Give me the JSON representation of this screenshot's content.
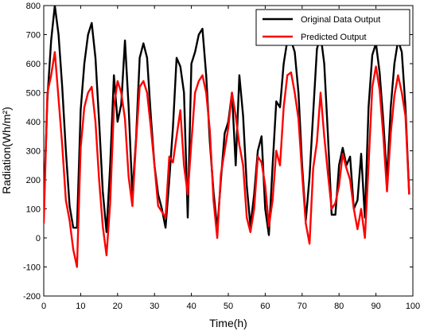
{
  "chart_data": {
    "type": "line",
    "xlabel": "Time(h)",
    "ylabel": "Radiation(Wh/m²)",
    "xlim": [
      0,
      100
    ],
    "ylim": [
      -200,
      800
    ],
    "xticks": [
      0,
      10,
      20,
      30,
      40,
      50,
      60,
      70,
      80,
      90,
      100
    ],
    "yticks": [
      -200,
      -100,
      0,
      100,
      200,
      300,
      400,
      500,
      600,
      700,
      800
    ],
    "grid": false,
    "legend_position": "top-right",
    "series": [
      {
        "name": "Original Data Output",
        "color": "#000000",
        "x": [
          0,
          1,
          2,
          3,
          4,
          5,
          6,
          7,
          8,
          9,
          10,
          11,
          12,
          13,
          14,
          15,
          16,
          17,
          18,
          19,
          20,
          21,
          22,
          23,
          24,
          25,
          26,
          27,
          28,
          29,
          30,
          31,
          32,
          33,
          34,
          35,
          36,
          37,
          38,
          39,
          40,
          41,
          42,
          43,
          44,
          45,
          46,
          47,
          48,
          49,
          50,
          51,
          52,
          53,
          54,
          55,
          56,
          57,
          58,
          59,
          60,
          61,
          62,
          63,
          64,
          65,
          66,
          67,
          68,
          69,
          70,
          71,
          72,
          73,
          74,
          75,
          76,
          77,
          78,
          79,
          80,
          81,
          82,
          83,
          84,
          85,
          86,
          87,
          88,
          89,
          90,
          91,
          92,
          93,
          94,
          95,
          96,
          97,
          98,
          99
        ],
        "y": [
          100,
          480,
          680,
          800,
          700,
          520,
          300,
          110,
          35,
          35,
          440,
          600,
          700,
          740,
          620,
          400,
          160,
          20,
          250,
          560,
          400,
          460,
          680,
          450,
          150,
          340,
          620,
          670,
          620,
          420,
          250,
          150,
          100,
          35,
          200,
          380,
          620,
          590,
          500,
          70,
          600,
          640,
          700,
          720,
          560,
          330,
          160,
          30,
          200,
          360,
          400,
          500,
          250,
          560,
          420,
          180,
          40,
          150,
          300,
          350,
          100,
          10,
          250,
          470,
          450,
          600,
          680,
          680,
          640,
          500,
          250,
          60,
          210,
          430,
          650,
          700,
          600,
          350,
          80,
          80,
          250,
          310,
          250,
          280,
          100,
          130,
          290,
          70,
          450,
          630,
          670,
          570,
          400,
          200,
          450,
          600,
          680,
          640,
          450,
          150
        ]
      },
      {
        "name": "Predicted Output",
        "color": "#ff0000",
        "x": [
          0,
          1,
          2,
          3,
          4,
          5,
          6,
          7,
          8,
          9,
          10,
          11,
          12,
          13,
          14,
          15,
          16,
          17,
          18,
          19,
          20,
          21,
          22,
          23,
          24,
          25,
          26,
          27,
          28,
          29,
          30,
          31,
          32,
          33,
          34,
          35,
          36,
          37,
          38,
          39,
          40,
          41,
          42,
          43,
          44,
          45,
          46,
          47,
          48,
          49,
          50,
          51,
          52,
          53,
          54,
          55,
          56,
          57,
          58,
          59,
          60,
          61,
          62,
          63,
          64,
          65,
          66,
          67,
          68,
          69,
          70,
          71,
          72,
          73,
          74,
          75,
          76,
          77,
          78,
          79,
          80,
          81,
          82,
          83,
          84,
          85,
          86,
          87,
          88,
          89,
          90,
          91,
          92,
          93,
          94,
          95,
          96,
          97,
          98,
          99
        ],
        "y": [
          50,
          500,
          560,
          640,
          480,
          320,
          130,
          60,
          -40,
          -100,
          310,
          450,
          500,
          520,
          400,
          200,
          40,
          -60,
          120,
          450,
          540,
          500,
          410,
          210,
          110,
          330,
          520,
          540,
          500,
          380,
          250,
          110,
          90,
          70,
          280,
          260,
          350,
          440,
          250,
          150,
          330,
          500,
          540,
          560,
          500,
          370,
          130,
          0,
          220,
          300,
          380,
          500,
          420,
          320,
          250,
          70,
          20,
          100,
          280,
          260,
          180,
          40,
          130,
          300,
          250,
          450,
          560,
          570,
          500,
          410,
          220,
          50,
          -20,
          240,
          330,
          500,
          350,
          220,
          100,
          120,
          180,
          290,
          240,
          200,
          100,
          30,
          100,
          0,
          250,
          520,
          590,
          510,
          350,
          160,
          360,
          490,
          560,
          500,
          420,
          150
        ]
      }
    ]
  }
}
